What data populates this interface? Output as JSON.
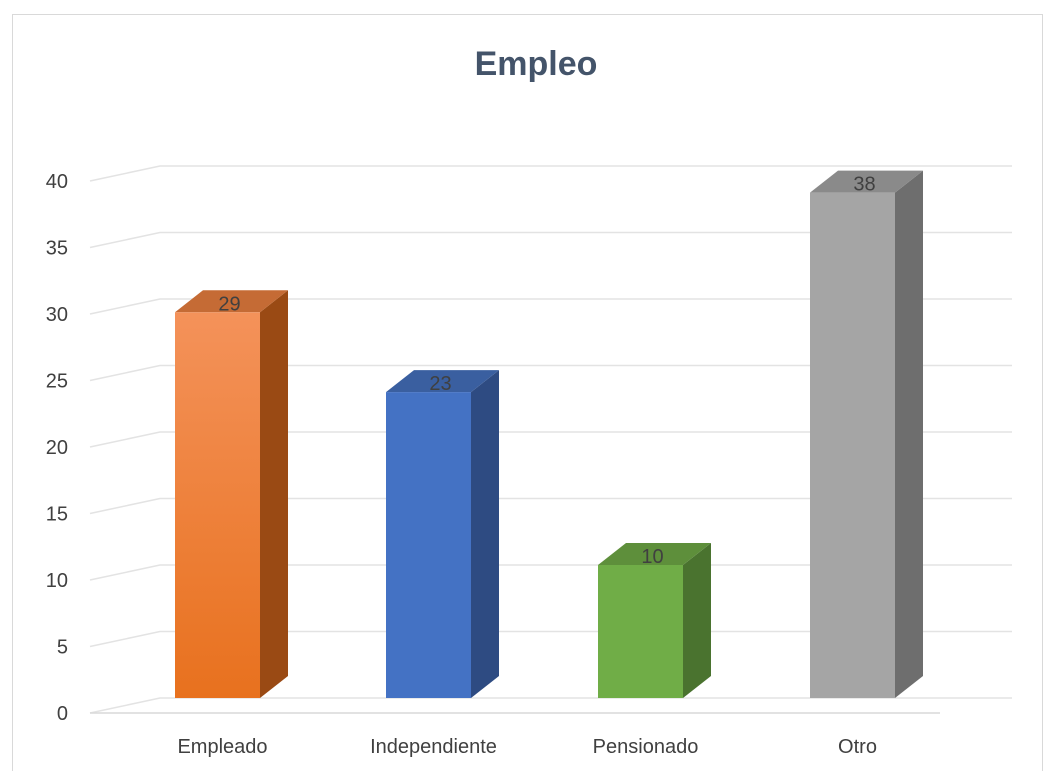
{
  "chart_data": {
    "type": "bar",
    "title": "Empleo",
    "categories": [
      "Empleado",
      "Independiente",
      "Pensionado",
      "Otro"
    ],
    "values": [
      29,
      23,
      10,
      38
    ],
    "ylim": [
      0,
      40
    ],
    "yticks": [
      0,
      5,
      10,
      15,
      20,
      25,
      30,
      35,
      40
    ],
    "grid": true,
    "legend": "none",
    "colors": [
      {
        "front_top": "#F4925A",
        "front_bottom": "#E8711E",
        "side": "#9A4A14",
        "top": "#C56B35"
      },
      {
        "front_top": "#4472C4",
        "front_bottom": "#4472C4",
        "side": "#2E4B82",
        "top": "#3A5FA0"
      },
      {
        "front_top": "#70AD47",
        "front_bottom": "#70AD47",
        "side": "#4A732F",
        "top": "#5E8F3B"
      },
      {
        "front_top": "#A5A5A5",
        "front_bottom": "#A5A5A5",
        "side": "#6E6E6E",
        "top": "#8A8A8A"
      }
    ]
  }
}
